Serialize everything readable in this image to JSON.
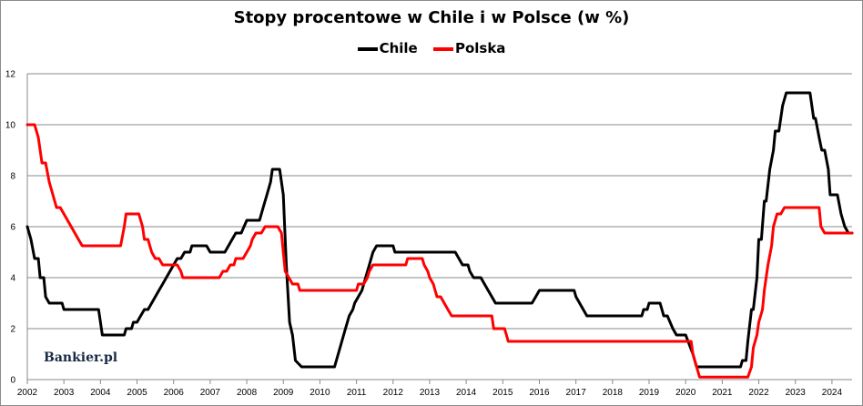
{
  "chart_data": {
    "type": "line",
    "title": "Stopy procentowe w Chile i w Polsce (w %)",
    "xlabel": "",
    "ylabel": "",
    "xlim": [
      2002.0,
      2024.55
    ],
    "ylim": [
      0,
      12
    ],
    "y_ticks": [
      0,
      2,
      4,
      6,
      8,
      10,
      12
    ],
    "x_ticks": [
      "2002",
      "2003",
      "2004",
      "2005",
      "2006",
      "2007",
      "2008",
      "2009",
      "2010",
      "2011",
      "2012",
      "2013",
      "2014",
      "2015",
      "2016",
      "2017",
      "2018",
      "2019",
      "2020",
      "2021",
      "2022",
      "2023",
      "2024"
    ],
    "grid": true,
    "legend_position": "top-center",
    "watermark": "Bankier.pl",
    "series": [
      {
        "name": "Chile",
        "color": "#000000",
        "points": [
          [
            2002.0,
            6.0
          ],
          [
            2002.1,
            5.5
          ],
          [
            2002.2,
            4.75
          ],
          [
            2002.3,
            4.75
          ],
          [
            2002.35,
            4.0
          ],
          [
            2002.45,
            4.0
          ],
          [
            2002.5,
            3.25
          ],
          [
            2002.6,
            3.0
          ],
          [
            2002.95,
            3.0
          ],
          [
            2003.0,
            2.75
          ],
          [
            2003.95,
            2.75
          ],
          [
            2004.05,
            1.75
          ],
          [
            2004.65,
            1.75
          ],
          [
            2004.7,
            2.0
          ],
          [
            2004.85,
            2.0
          ],
          [
            2004.9,
            2.25
          ],
          [
            2005.0,
            2.25
          ],
          [
            2005.1,
            2.5
          ],
          [
            2005.2,
            2.75
          ],
          [
            2005.3,
            2.75
          ],
          [
            2005.4,
            3.0
          ],
          [
            2005.5,
            3.25
          ],
          [
            2005.6,
            3.5
          ],
          [
            2005.7,
            3.75
          ],
          [
            2005.8,
            4.0
          ],
          [
            2005.9,
            4.25
          ],
          [
            2006.0,
            4.5
          ],
          [
            2006.1,
            4.75
          ],
          [
            2006.2,
            4.75
          ],
          [
            2006.3,
            5.0
          ],
          [
            2006.45,
            5.0
          ],
          [
            2006.5,
            5.25
          ],
          [
            2006.9,
            5.25
          ],
          [
            2007.0,
            5.0
          ],
          [
            2007.4,
            5.0
          ],
          [
            2007.5,
            5.25
          ],
          [
            2007.6,
            5.5
          ],
          [
            2007.7,
            5.75
          ],
          [
            2007.85,
            5.75
          ],
          [
            2008.0,
            6.25
          ],
          [
            2008.35,
            6.25
          ],
          [
            2008.45,
            6.75
          ],
          [
            2008.55,
            7.25
          ],
          [
            2008.65,
            7.75
          ],
          [
            2008.7,
            8.25
          ],
          [
            2008.9,
            8.25
          ],
          [
            2009.0,
            7.25
          ],
          [
            2009.08,
            4.5
          ],
          [
            2009.17,
            2.25
          ],
          [
            2009.25,
            1.75
          ],
          [
            2009.33,
            0.75
          ],
          [
            2009.5,
            0.5
          ],
          [
            2010.4,
            0.5
          ],
          [
            2010.5,
            1.0
          ],
          [
            2010.6,
            1.5
          ],
          [
            2010.7,
            2.0
          ],
          [
            2010.8,
            2.5
          ],
          [
            2010.9,
            2.75
          ],
          [
            2010.95,
            3.0
          ],
          [
            2011.05,
            3.25
          ],
          [
            2011.15,
            3.5
          ],
          [
            2011.25,
            4.0
          ],
          [
            2011.35,
            4.5
          ],
          [
            2011.45,
            5.0
          ],
          [
            2011.55,
            5.25
          ],
          [
            2012.0,
            5.25
          ],
          [
            2012.05,
            5.0
          ],
          [
            2013.7,
            5.0
          ],
          [
            2013.8,
            4.75
          ],
          [
            2013.9,
            4.5
          ],
          [
            2014.05,
            4.5
          ],
          [
            2014.1,
            4.25
          ],
          [
            2014.2,
            4.0
          ],
          [
            2014.4,
            4.0
          ],
          [
            2014.5,
            3.75
          ],
          [
            2014.6,
            3.5
          ],
          [
            2014.7,
            3.25
          ],
          [
            2014.8,
            3.0
          ],
          [
            2015.8,
            3.0
          ],
          [
            2015.9,
            3.25
          ],
          [
            2016.0,
            3.5
          ],
          [
            2016.95,
            3.5
          ],
          [
            2017.0,
            3.25
          ],
          [
            2017.1,
            3.0
          ],
          [
            2017.2,
            2.75
          ],
          [
            2017.3,
            2.5
          ],
          [
            2018.8,
            2.5
          ],
          [
            2018.85,
            2.75
          ],
          [
            2018.95,
            2.75
          ],
          [
            2019.0,
            3.0
          ],
          [
            2019.3,
            3.0
          ],
          [
            2019.4,
            2.5
          ],
          [
            2019.5,
            2.5
          ],
          [
            2019.65,
            2.0
          ],
          [
            2019.75,
            1.75
          ],
          [
            2020.0,
            1.75
          ],
          [
            2020.2,
            1.0
          ],
          [
            2020.3,
            0.5
          ],
          [
            2021.5,
            0.5
          ],
          [
            2021.55,
            0.75
          ],
          [
            2021.65,
            0.75
          ],
          [
            2021.7,
            1.5
          ],
          [
            2021.8,
            2.75
          ],
          [
            2021.85,
            2.75
          ],
          [
            2021.95,
            4.0
          ],
          [
            2022.0,
            5.5
          ],
          [
            2022.07,
            5.5
          ],
          [
            2022.15,
            7.0
          ],
          [
            2022.2,
            7.0
          ],
          [
            2022.3,
            8.25
          ],
          [
            2022.4,
            9.0
          ],
          [
            2022.45,
            9.75
          ],
          [
            2022.55,
            9.75
          ],
          [
            2022.65,
            10.75
          ],
          [
            2022.75,
            11.25
          ],
          [
            2023.4,
            11.25
          ],
          [
            2023.5,
            10.25
          ],
          [
            2023.55,
            10.25
          ],
          [
            2023.65,
            9.5
          ],
          [
            2023.72,
            9.0
          ],
          [
            2023.8,
            9.0
          ],
          [
            2023.9,
            8.25
          ],
          [
            2023.95,
            7.25
          ],
          [
            2024.15,
            7.25
          ],
          [
            2024.25,
            6.5
          ],
          [
            2024.35,
            6.0
          ],
          [
            2024.45,
            5.75
          ],
          [
            2024.55,
            5.75
          ]
        ]
      },
      {
        "name": "Polska",
        "color": "#ff0000",
        "points": [
          [
            2002.0,
            10.0
          ],
          [
            2002.2,
            10.0
          ],
          [
            2002.3,
            9.5
          ],
          [
            2002.4,
            8.5
          ],
          [
            2002.5,
            8.5
          ],
          [
            2002.6,
            7.75
          ],
          [
            2002.7,
            7.25
          ],
          [
            2002.8,
            6.75
          ],
          [
            2002.9,
            6.75
          ],
          [
            2003.0,
            6.5
          ],
          [
            2003.1,
            6.25
          ],
          [
            2003.2,
            6.0
          ],
          [
            2003.3,
            5.75
          ],
          [
            2003.4,
            5.5
          ],
          [
            2003.5,
            5.25
          ],
          [
            2004.45,
            5.25
          ],
          [
            2004.55,
            5.25
          ],
          [
            2004.65,
            6.0
          ],
          [
            2004.7,
            6.5
          ],
          [
            2005.05,
            6.5
          ],
          [
            2005.15,
            6.0
          ],
          [
            2005.2,
            5.5
          ],
          [
            2005.3,
            5.5
          ],
          [
            2005.4,
            5.0
          ],
          [
            2005.5,
            4.75
          ],
          [
            2005.6,
            4.75
          ],
          [
            2005.7,
            4.5
          ],
          [
            2006.1,
            4.5
          ],
          [
            2006.2,
            4.25
          ],
          [
            2006.25,
            4.0
          ],
          [
            2007.25,
            4.0
          ],
          [
            2007.35,
            4.25
          ],
          [
            2007.45,
            4.25
          ],
          [
            2007.55,
            4.5
          ],
          [
            2007.65,
            4.5
          ],
          [
            2007.7,
            4.75
          ],
          [
            2007.9,
            4.75
          ],
          [
            2008.0,
            5.0
          ],
          [
            2008.1,
            5.25
          ],
          [
            2008.15,
            5.5
          ],
          [
            2008.25,
            5.75
          ],
          [
            2008.4,
            5.75
          ],
          [
            2008.5,
            6.0
          ],
          [
            2008.85,
            6.0
          ],
          [
            2008.95,
            5.75
          ],
          [
            2009.0,
            5.0
          ],
          [
            2009.05,
            4.25
          ],
          [
            2009.15,
            4.0
          ],
          [
            2009.25,
            3.75
          ],
          [
            2009.4,
            3.75
          ],
          [
            2009.45,
            3.5
          ],
          [
            2011.0,
            3.5
          ],
          [
            2011.05,
            3.75
          ],
          [
            2011.2,
            3.75
          ],
          [
            2011.3,
            4.0
          ],
          [
            2011.35,
            4.25
          ],
          [
            2011.45,
            4.5
          ],
          [
            2012.35,
            4.5
          ],
          [
            2012.4,
            4.75
          ],
          [
            2012.8,
            4.75
          ],
          [
            2012.85,
            4.5
          ],
          [
            2012.95,
            4.25
          ],
          [
            2013.0,
            4.0
          ],
          [
            2013.1,
            3.75
          ],
          [
            2013.2,
            3.25
          ],
          [
            2013.3,
            3.25
          ],
          [
            2013.4,
            3.0
          ],
          [
            2013.5,
            2.75
          ],
          [
            2013.6,
            2.5
          ],
          [
            2014.7,
            2.5
          ],
          [
            2014.75,
            2.0
          ],
          [
            2015.05,
            2.0
          ],
          [
            2015.15,
            1.5
          ],
          [
            2020.15,
            1.5
          ],
          [
            2020.2,
            1.0
          ],
          [
            2020.3,
            0.5
          ],
          [
            2020.38,
            0.1
          ],
          [
            2021.7,
            0.1
          ],
          [
            2021.8,
            0.5
          ],
          [
            2021.85,
            1.25
          ],
          [
            2021.95,
            1.75
          ],
          [
            2022.0,
            2.25
          ],
          [
            2022.1,
            2.75
          ],
          [
            2022.15,
            3.5
          ],
          [
            2022.25,
            4.5
          ],
          [
            2022.35,
            5.25
          ],
          [
            2022.4,
            6.0
          ],
          [
            2022.5,
            6.5
          ],
          [
            2022.6,
            6.5
          ],
          [
            2022.7,
            6.75
          ],
          [
            2023.65,
            6.75
          ],
          [
            2023.7,
            6.0
          ],
          [
            2023.8,
            5.75
          ],
          [
            2024.55,
            5.75
          ]
        ]
      }
    ]
  }
}
